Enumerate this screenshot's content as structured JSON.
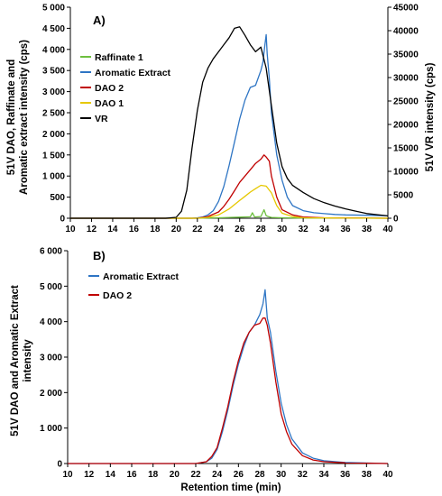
{
  "chart_data": [
    {
      "panel_label": "A)",
      "type": "line",
      "ylabel_line1": "51V DAO, Raffinate and",
      "ylabel_line2": "Aromatic extract intensity (cps)",
      "y2label": "51V VR intensity (cps)",
      "xlim": [
        10,
        40
      ],
      "ylim": [
        0,
        5000
      ],
      "y2lim": [
        0,
        45000
      ],
      "x_ticks": [
        "10",
        "12",
        "14",
        "16",
        "18",
        "20",
        "22",
        "24",
        "26",
        "28",
        "30",
        "32",
        "34",
        "36",
        "38",
        "40"
      ],
      "y_ticks": [
        "0",
        "500",
        "1 000",
        "1 500",
        "2 000",
        "2 500",
        "3 000",
        "3 500",
        "4 000",
        "4 500",
        "5 000"
      ],
      "y2_ticks": [
        "0",
        "5000",
        "10000",
        "15000",
        "20000",
        "25000",
        "30000",
        "35000",
        "40000",
        "45000"
      ],
      "legend_position": "upper-left",
      "series": [
        {
          "name": "Raffinate 1",
          "color": "#6dbf3f",
          "axis": "left",
          "x": [
            10,
            22,
            24,
            26,
            27,
            27.2,
            27.4,
            28,
            28.3,
            28.5,
            28.7,
            29,
            30,
            32,
            40
          ],
          "y": [
            0,
            0,
            10,
            25,
            35,
            130,
            30,
            40,
            200,
            60,
            40,
            20,
            10,
            5,
            0
          ]
        },
        {
          "name": "Aromatic Extract",
          "color": "#2e75c4",
          "axis": "left",
          "x": [
            10,
            21.5,
            22,
            22.5,
            23,
            23.5,
            24,
            24.5,
            25,
            25.5,
            26,
            26.5,
            27,
            27.5,
            28,
            28.2,
            28.4,
            28.5,
            28.6,
            28.8,
            29,
            29.5,
            30,
            30.5,
            31,
            32,
            33,
            34,
            35,
            36,
            38,
            40
          ],
          "y": [
            0,
            0,
            10,
            30,
            80,
            180,
            400,
            750,
            1250,
            1800,
            2350,
            2800,
            3100,
            3150,
            3500,
            3700,
            4150,
            4350,
            3900,
            3300,
            2500,
            1500,
            900,
            500,
            300,
            180,
            130,
            110,
            90,
            80,
            70,
            60
          ]
        },
        {
          "name": "DAO 2",
          "color": "#c00000",
          "axis": "left",
          "x": [
            10,
            22,
            23,
            24,
            24.5,
            25,
            25.5,
            26,
            26.5,
            27,
            27.5,
            28,
            28.3,
            28.5,
            28.8,
            29,
            29.5,
            30,
            31,
            32,
            34,
            40
          ],
          "y": [
            0,
            0,
            40,
            150,
            280,
            450,
            650,
            850,
            1000,
            1150,
            1300,
            1400,
            1500,
            1450,
            1350,
            1000,
            500,
            200,
            80,
            30,
            10,
            0
          ]
        },
        {
          "name": "DAO 1",
          "color": "#e6c800",
          "axis": "left",
          "x": [
            10,
            22,
            23,
            24,
            25,
            26,
            26.5,
            27,
            27.5,
            28,
            28.5,
            29,
            29.5,
            30,
            31,
            32,
            40
          ],
          "y": [
            0,
            0,
            20,
            80,
            220,
            420,
            520,
            620,
            700,
            780,
            760,
            600,
            300,
            120,
            40,
            10,
            0
          ]
        },
        {
          "name": "VR",
          "color": "#000000",
          "axis": "right",
          "x": [
            10,
            19,
            20,
            20.5,
            21,
            21.5,
            22,
            22.5,
            23,
            23.5,
            24,
            24.5,
            25,
            25.5,
            26,
            26.5,
            27,
            27.5,
            28,
            28.5,
            29,
            29.5,
            30,
            30.5,
            31,
            32,
            33,
            34,
            35,
            36,
            37,
            38,
            40
          ],
          "y": [
            0,
            0,
            200,
            1500,
            6000,
            15000,
            23000,
            29000,
            32000,
            34000,
            35500,
            37000,
            38500,
            40500,
            40800,
            39000,
            37000,
            35500,
            36500,
            32000,
            24000,
            16000,
            11000,
            8500,
            7000,
            5500,
            4200,
            3300,
            2600,
            2000,
            1500,
            1000,
            500
          ]
        }
      ]
    },
    {
      "panel_label": "B)",
      "type": "line",
      "xlabel": "Retention time (min)",
      "ylabel_line1": "51V DAO and Aromatic Extract",
      "ylabel_line2": "intensity",
      "xlim": [
        10,
        40
      ],
      "ylim": [
        0,
        6000
      ],
      "x_ticks": [
        "10",
        "12",
        "14",
        "16",
        "18",
        "20",
        "22",
        "24",
        "26",
        "28",
        "30",
        "32",
        "34",
        "36",
        "38",
        "40"
      ],
      "y_ticks": [
        "0",
        "1 000",
        "2 000",
        "3 000",
        "4 000",
        "5 000",
        "6 000"
      ],
      "legend_position": "upper-left",
      "series": [
        {
          "name": "Aromatic Extract",
          "color": "#2e75c4",
          "x": [
            10,
            22,
            23,
            23.5,
            24,
            24.5,
            25,
            25.5,
            26,
            26.5,
            27,
            27.5,
            28,
            28.3,
            28.5,
            28.7,
            29,
            29.5,
            30,
            30.5,
            31,
            32,
            33,
            34,
            36,
            40
          ],
          "y": [
            0,
            0,
            50,
            150,
            400,
            900,
            1500,
            2200,
            2800,
            3300,
            3700,
            3900,
            4200,
            4500,
            4900,
            4100,
            3700,
            2600,
            1700,
            1100,
            700,
            300,
            150,
            80,
            30,
            0
          ]
        },
        {
          "name": "DAO 2",
          "color": "#c00000",
          "x": [
            10,
            22,
            23,
            23.5,
            24,
            24.5,
            25,
            25.5,
            26,
            26.5,
            27,
            27.5,
            28,
            28.3,
            28.5,
            28.7,
            29,
            29.5,
            30,
            30.5,
            31,
            32,
            33,
            34,
            36,
            40
          ],
          "y": [
            0,
            0,
            50,
            200,
            450,
            1000,
            1600,
            2300,
            2900,
            3400,
            3700,
            3900,
            3950,
            4100,
            4100,
            3900,
            3400,
            2300,
            1400,
            900,
            550,
            220,
            100,
            50,
            20,
            0
          ]
        }
      ]
    }
  ]
}
